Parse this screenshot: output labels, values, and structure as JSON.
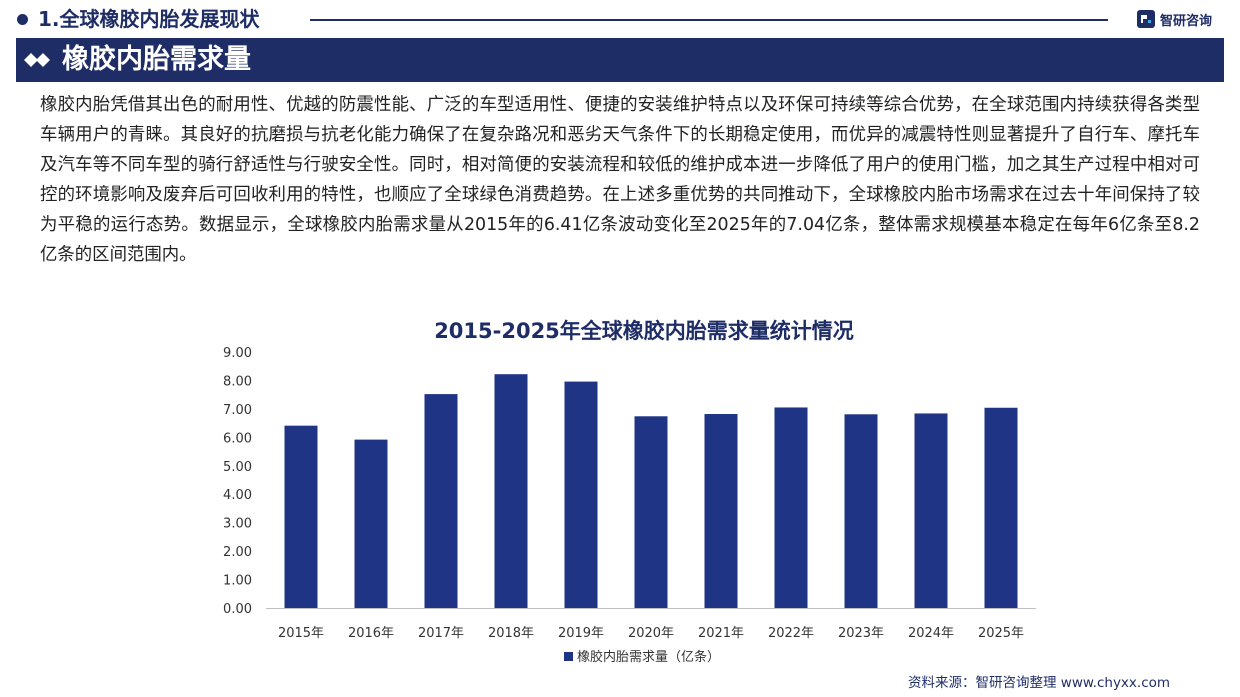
{
  "header": {
    "section_title": "1.全球橡胶内胎发展现状",
    "brand_name": "智研咨询"
  },
  "banner": {
    "title": "橡胶内胎需求量"
  },
  "body": {
    "paragraph": "橡胶内胎凭借其出色的耐用性、优越的防震性能、广泛的车型适用性、便捷的安装维护特点以及环保可持续等综合优势，在全球范围内持续获得各类型车辆用户的青睐。其良好的抗磨损与抗老化能力确保了在复杂路况和恶劣天气条件下的长期稳定使用，而优异的减震特性则显著提升了自行车、摩托车及汽车等不同车型的骑行舒适性与行驶安全性。同时，相对简便的安装流程和较低的维护成本进一步降低了用户的使用门槛，加之其生产过程中相对可控的环境影响及废弃后可回收利用的特性，也顺应了全球绿色消费趋势。在上述多重优势的共同推动下，全球橡胶内胎市场需求在过去十年间保持了较为平稳的运行态势。数据显示，全球橡胶内胎需求量从2015年的6.41亿条波动变化至2025年的7.04亿条，整体需求规模基本稳定在每年6亿条至8.2亿条的区间范围内。"
  },
  "chart_data": {
    "type": "bar",
    "title": "2015-2025年全球橡胶内胎需求量统计情况",
    "categories": [
      "2015年",
      "2016年",
      "2017年",
      "2018年",
      "2019年",
      "2020年",
      "2021年",
      "2022年",
      "2023年",
      "2024年",
      "2025年"
    ],
    "series": [
      {
        "name": "橡胶内胎需求量（亿条）",
        "values": [
          6.41,
          5.92,
          7.52,
          8.22,
          7.96,
          6.74,
          6.82,
          7.05,
          6.81,
          6.84,
          7.04
        ]
      }
    ],
    "ylim": [
      0,
      9
    ],
    "yticks": [
      "0.00",
      "1.00",
      "2.00",
      "3.00",
      "4.00",
      "5.00",
      "6.00",
      "7.00",
      "8.00",
      "9.00"
    ],
    "legend_position": "bottom",
    "grid": false,
    "bar_color": "#1f3485"
  },
  "footer": {
    "source": "资料来源：智研咨询整理  www.chyxx.com"
  },
  "colors": {
    "brand": "#1f2d67",
    "bar": "#1f3485"
  },
  "icons": {
    "brand_logo": "chyxx-logo-icon",
    "banner": "double-diamond-icon",
    "bullet": "bullet-dot-icon"
  }
}
